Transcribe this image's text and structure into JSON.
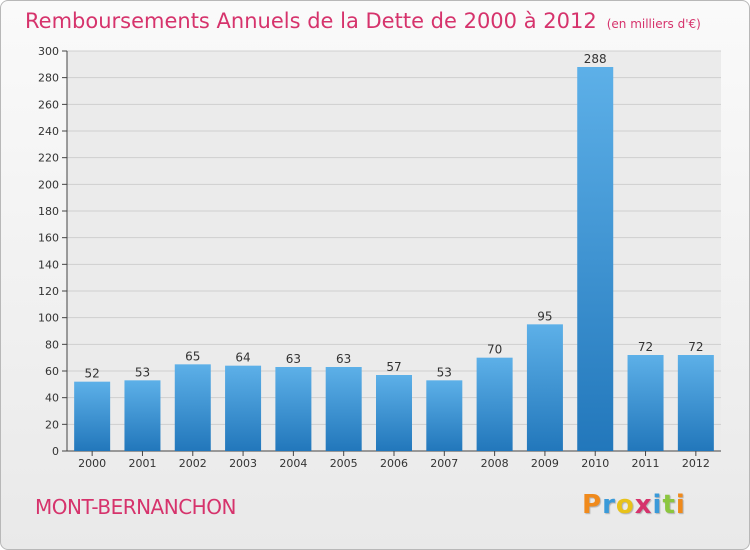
{
  "header": {
    "title": "Remboursements Annuels de la Dette de 2000 à 2012",
    "subtitle": "(en milliers d'€)"
  },
  "footer": {
    "commune": "MONT-BERNANCHON",
    "logo_text": "Proxiti"
  },
  "colors": {
    "title": "#d6336c",
    "bar_top": "#5db0e8",
    "bar_bottom": "#2277bb"
  },
  "chart_data": {
    "type": "bar",
    "title": "Remboursements Annuels de la Dette de 2000 à 2012",
    "categories": [
      "2000",
      "2001",
      "2002",
      "2003",
      "2004",
      "2005",
      "2006",
      "2007",
      "2008",
      "2009",
      "2010",
      "2011",
      "2012"
    ],
    "values": [
      52,
      53,
      65,
      64,
      63,
      63,
      57,
      53,
      70,
      95,
      288,
      72,
      72
    ],
    "ylim": [
      0,
      300
    ],
    "yticks": [
      0,
      20,
      40,
      60,
      80,
      100,
      120,
      140,
      160,
      180,
      200,
      220,
      240,
      260,
      280,
      300
    ],
    "grid": true
  }
}
